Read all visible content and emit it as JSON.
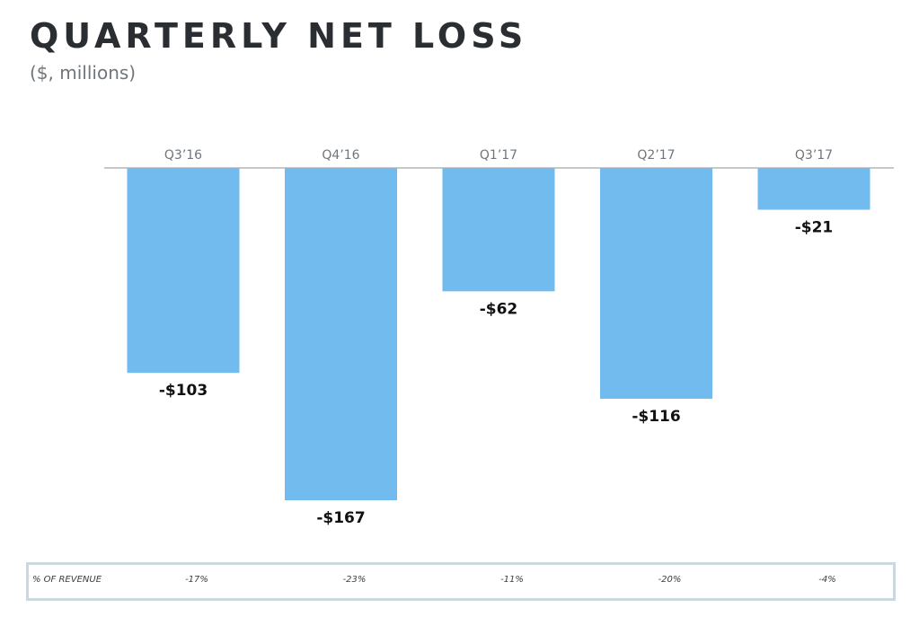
{
  "title": "QUARTERLY NET LOSS",
  "subtitle": "($, millions)",
  "colors": {
    "bar": "#72bbef",
    "baseline": "#8c9297",
    "category_text": "#6f767c",
    "value_text": "#111111"
  },
  "chart_data": {
    "type": "bar",
    "title": "QUARTERLY NET LOSS",
    "subtitle": "($, millions)",
    "categories": [
      "Q3’16",
      "Q4’16",
      "Q1’17",
      "Q2’17",
      "Q3’17"
    ],
    "values": [
      -103,
      -167,
      -62,
      -116,
      -21
    ],
    "value_labels": [
      "-$103",
      "-$167",
      "-$62",
      "-$116",
      "-$21"
    ],
    "ylim": [
      -167,
      0
    ],
    "grid": false,
    "category_axis_position": "top"
  },
  "revenue_row": {
    "label": "% OF REVENUE",
    "values": [
      "-17%",
      "-23%",
      "-11%",
      "-20%",
      "-4%"
    ]
  }
}
